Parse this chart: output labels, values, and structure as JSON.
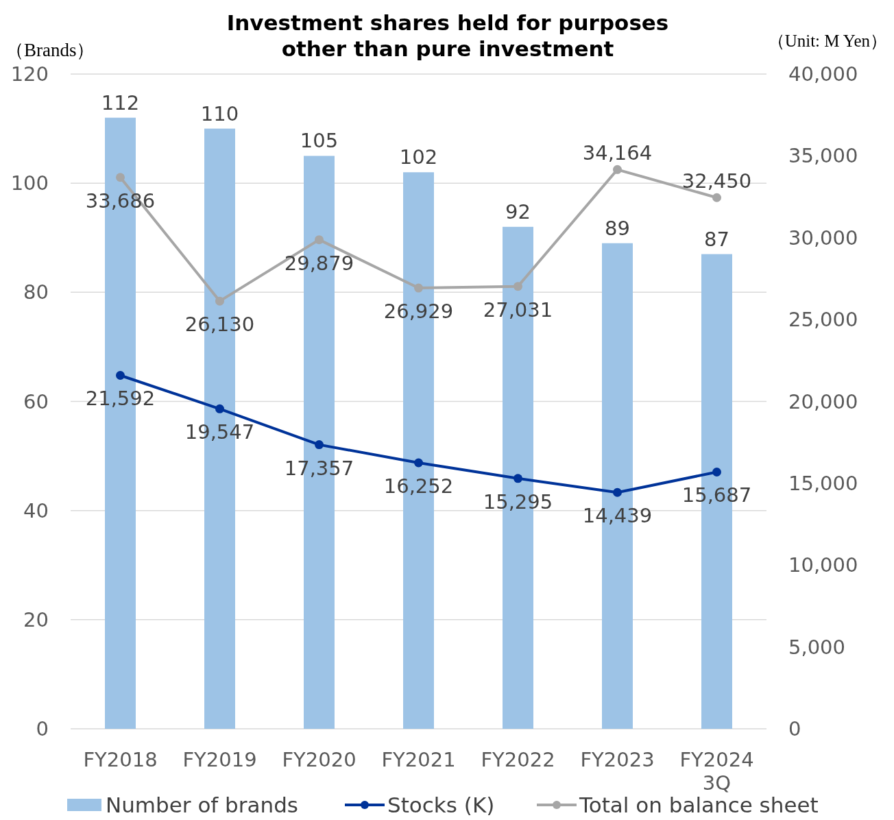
{
  "chart_data": {
    "type": "bar",
    "title": "Investment shares held for purposes other than pure investment",
    "ylabel": "（Brands）",
    "y2label": "（Unit: M Yen）",
    "categories": [
      "FY2018",
      "FY2019",
      "FY2020",
      "FY2021",
      "FY2022",
      "FY2023",
      "FY2024 3Q"
    ],
    "series": [
      {
        "name": "Number of brands",
        "color": "#9dc3e6",
        "values": [
          112,
          110,
          105,
          102,
          92,
          89,
          87
        ]
      },
      {
        "name": "Stocks (K)",
        "type": "line",
        "axis": "y2",
        "color": "#003399",
        "values": [
          21592,
          19547,
          17357,
          16252,
          15295,
          14439,
          15687
        ],
        "value_labels": [
          "21,592",
          "19,547",
          "17,357",
          "16,252",
          "15,295",
          "14,439",
          "15,687"
        ]
      },
      {
        "name": "Total on balance sheet",
        "type": "line",
        "axis": "y2",
        "color": "#a6a6a6",
        "values": [
          33686,
          26130,
          29879,
          26929,
          27031,
          34164,
          32450
        ],
        "value_labels": [
          "33,686",
          "26,130",
          "29,879",
          "26,929",
          "27,031",
          "34,164",
          "32,450"
        ]
      }
    ],
    "ylim": [
      0,
      120
    ],
    "yticks": [
      0,
      20,
      40,
      60,
      80,
      100,
      120
    ],
    "y2lim": [
      0,
      40000
    ],
    "y2ticks": [
      {
        "value": 0,
        "label": "0"
      },
      {
        "value": 5000,
        "label": "5,000"
      },
      {
        "value": 10000,
        "label": "10,000"
      },
      {
        "value": 15000,
        "label": "15,000"
      },
      {
        "value": 20000,
        "label": "20,000"
      },
      {
        "value": 25000,
        "label": "25,000"
      },
      {
        "value": 30000,
        "label": "30,000"
      },
      {
        "value": 35000,
        "label": "35,000"
      },
      {
        "value": 40000,
        "label": "40,000"
      }
    ],
    "grid": "y",
    "legend": "bottom",
    "marker": "circle",
    "line_style": "solid",
    "data_labels": true
  }
}
